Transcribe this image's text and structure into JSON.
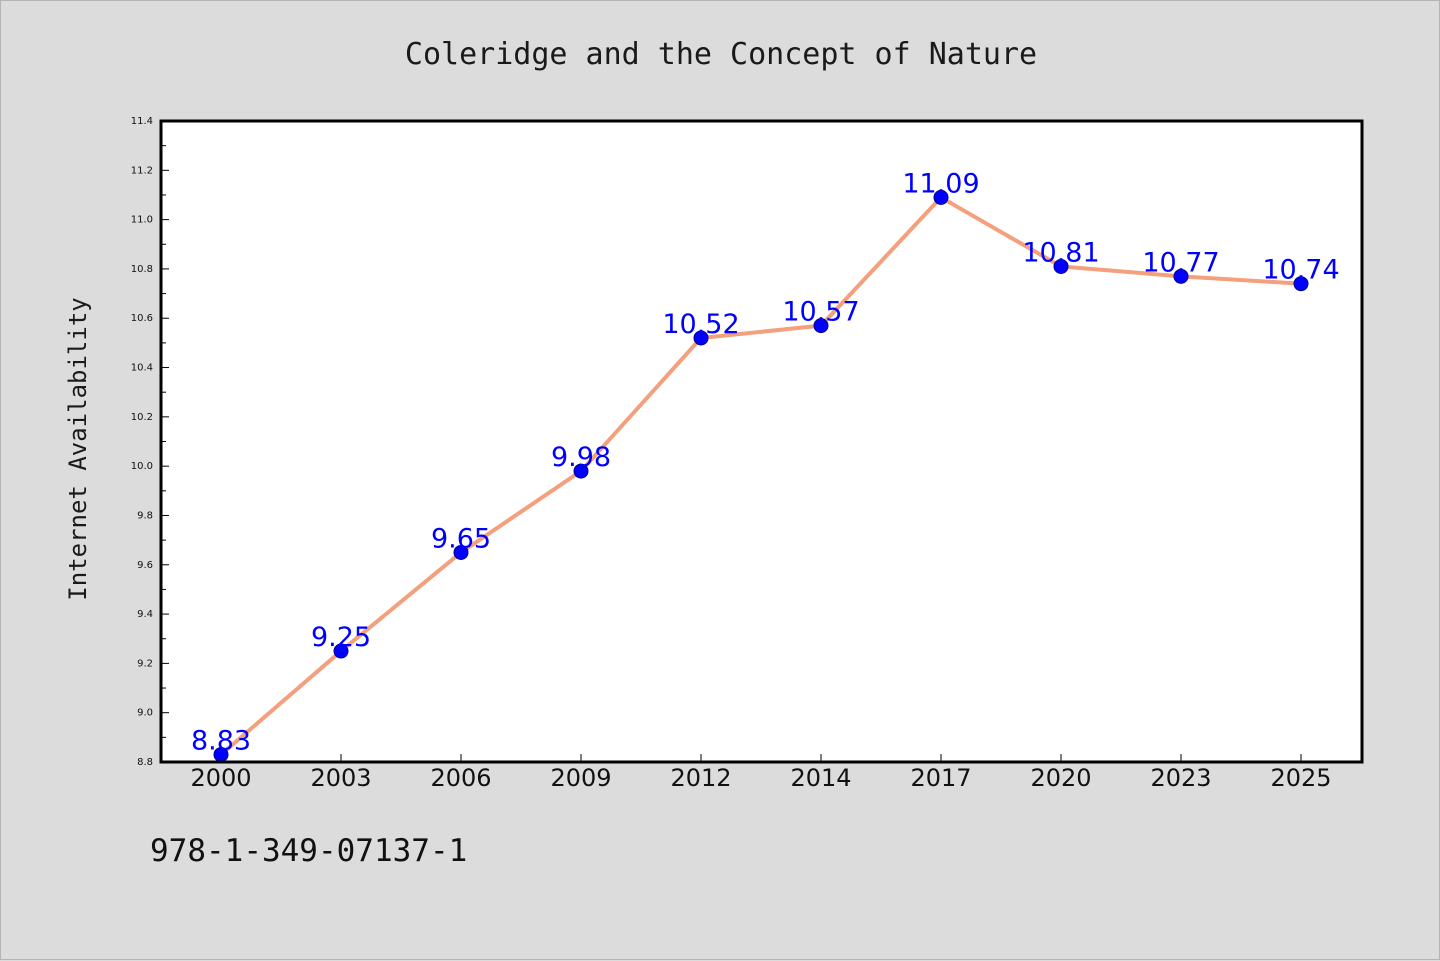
{
  "chart_data": {
    "type": "line",
    "title": "Coleridge and the Concept of Nature",
    "xlabel": "",
    "ylabel": "Internet Availability",
    "categories": [
      "2000",
      "2003",
      "2006",
      "2009",
      "2012",
      "2014",
      "2017",
      "2020",
      "2023",
      "2025"
    ],
    "series": [
      {
        "values": [
          8.83,
          9.25,
          9.65,
          9.98,
          10.52,
          10.57,
          11.09,
          10.81,
          10.77,
          10.74
        ]
      }
    ],
    "data_labels": [
      "8.83",
      "9.25",
      "9.65",
      "9.98",
      "10.52",
      "10.57",
      "11.09",
      "10.81",
      "10.77",
      "10.74"
    ],
    "ylim": [
      8.8,
      11.4
    ],
    "yticks": [
      "8.8",
      "9.0",
      "9.2",
      "9.4",
      "9.6",
      "9.8",
      "10.0",
      "10.2",
      "10.4",
      "10.6",
      "10.8",
      "11.0",
      "11.2",
      "11.4"
    ],
    "ytick_values": [
      8.8,
      9.0,
      9.2,
      9.4,
      9.6,
      9.8,
      10.0,
      10.2,
      10.4,
      10.6,
      10.8,
      11.0,
      11.2,
      11.4
    ],
    "grid": false,
    "legend": "none",
    "colors": {
      "line": "#f4a07c",
      "marker": "#0000ff",
      "marker_edge": "#00008b",
      "label": "#0000ff",
      "background": "#dcdcdc",
      "plot_bg": "#ffffff"
    }
  },
  "footer": {
    "isbn": "978-1-349-07137-1"
  }
}
